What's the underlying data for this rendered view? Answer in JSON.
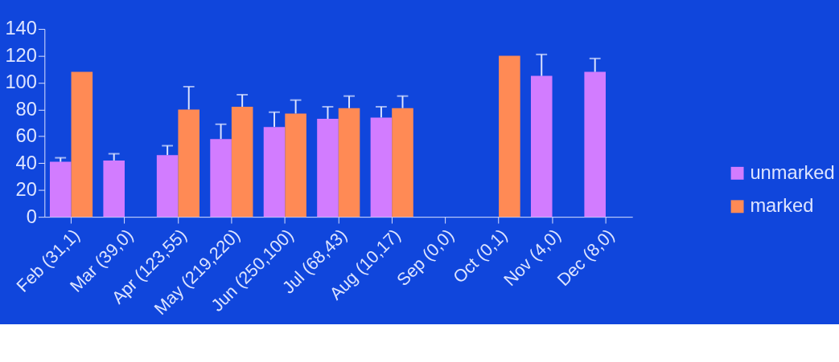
{
  "chart_data": {
    "type": "bar",
    "categories": [
      "Feb (31,1)",
      "Mar (39,0)",
      "Apr (123,55)",
      "May (219,220)",
      "Jun (250,100)",
      "Jul (68,43)",
      "Aug (10,17)",
      "Sep (0,0)",
      "Oct (0,1)",
      "Nov (4,0)",
      "Dec (8,0)"
    ],
    "series": [
      {
        "name": "unmarked",
        "color": "#d27cff",
        "values": [
          41,
          42,
          46,
          58,
          67,
          73,
          74,
          null,
          null,
          105,
          108
        ],
        "errors": [
          [
            41,
            44
          ],
          [
            42,
            47
          ],
          [
            46,
            53
          ],
          [
            58,
            69
          ],
          [
            67,
            78
          ],
          [
            73,
            82
          ],
          [
            74,
            82
          ],
          null,
          null,
          [
            105,
            121
          ],
          [
            108,
            118
          ]
        ]
      },
      {
        "name": "marked",
        "color": "#ff8a55",
        "values": [
          108,
          null,
          80,
          82,
          77,
          81,
          81,
          null,
          120,
          null,
          null
        ],
        "errors": [
          null,
          null,
          [
            80,
            97
          ],
          [
            82,
            91
          ],
          [
            77,
            87
          ],
          [
            81,
            90
          ],
          [
            81,
            90
          ],
          null,
          null,
          null,
          null
        ]
      }
    ],
    "ylim": [
      0,
      140
    ],
    "yticks": [
      0,
      20,
      40,
      60,
      80,
      100,
      120,
      140
    ],
    "grid": false,
    "legend": "right"
  }
}
